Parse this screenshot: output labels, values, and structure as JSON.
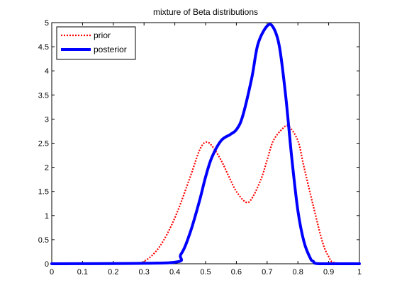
{
  "chart_data": {
    "type": "line",
    "title": "mixture of Beta distributions",
    "xlabel": "",
    "ylabel": "",
    "xlim": [
      0,
      1
    ],
    "ylim": [
      0,
      5
    ],
    "xticks": [
      0,
      0.1,
      0.2,
      0.3,
      0.4,
      0.5,
      0.6,
      0.7,
      0.8,
      0.9,
      1
    ],
    "xtick_labels": [
      "0",
      "0.1",
      "0.2",
      "0.3",
      "0.4",
      "0.5",
      "0.6",
      "0.7",
      "0.8",
      "0.9",
      "1"
    ],
    "yticks": [
      0,
      0.5,
      1,
      1.5,
      2,
      2.5,
      3,
      3.5,
      4,
      4.5,
      5
    ],
    "ytick_labels": [
      "0",
      "0.5",
      "1",
      "1.5",
      "2",
      "2.5",
      "3",
      "3.5",
      "4",
      "4.5",
      "5"
    ],
    "grid": false,
    "legend_position": "top-left",
    "series": [
      {
        "name": "prior",
        "color": "#ff0000",
        "style": "dotted",
        "x": [
          0,
          0.25,
          0.3,
          0.35,
          0.4,
          0.45,
          0.48,
          0.5,
          0.52,
          0.55,
          0.58,
          0.6,
          0.63,
          0.65,
          0.68,
          0.7,
          0.72,
          0.75,
          0.77,
          0.8,
          0.82,
          0.85,
          0.88,
          0.9,
          0.92,
          1
        ],
        "y": [
          0,
          0,
          0.05,
          0.35,
          0.95,
          1.8,
          2.35,
          2.52,
          2.45,
          2.15,
          1.75,
          1.5,
          1.28,
          1.35,
          1.75,
          2.15,
          2.55,
          2.8,
          2.85,
          2.55,
          2.0,
          1.2,
          0.45,
          0.15,
          0.02,
          0
        ]
      },
      {
        "name": "posterior",
        "color": "#0000ff",
        "style": "solid",
        "x": [
          0,
          0.38,
          0.42,
          0.45,
          0.48,
          0.5,
          0.52,
          0.55,
          0.58,
          0.6,
          0.62,
          0.65,
          0.67,
          0.7,
          0.72,
          0.74,
          0.76,
          0.78,
          0.8,
          0.82,
          0.84,
          0.85,
          0.87,
          1
        ],
        "y": [
          0,
          0.02,
          0.2,
          0.65,
          1.3,
          1.8,
          2.2,
          2.55,
          2.68,
          2.78,
          3.05,
          3.85,
          4.55,
          4.93,
          4.9,
          4.5,
          3.5,
          2.2,
          1.1,
          0.45,
          0.12,
          0.05,
          0,
          0
        ]
      }
    ]
  }
}
